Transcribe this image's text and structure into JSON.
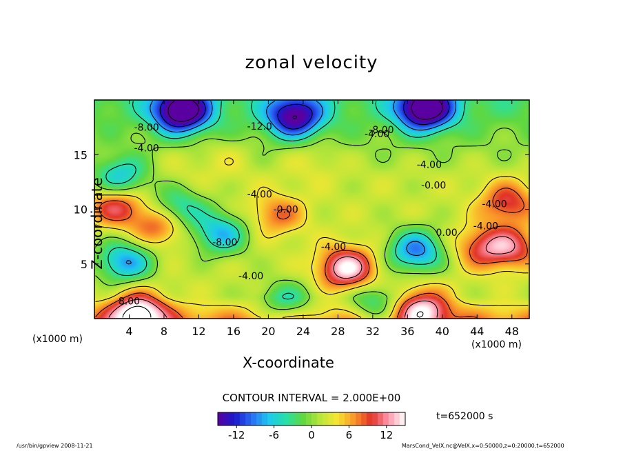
{
  "chart_data": {
    "type": "heatmap",
    "title": "zonal velocity",
    "xlabel": "X-coordinate",
    "ylabel": "Z-coordinate",
    "x_unit_left": "(x1000 m)",
    "x_unit_right": "(x1000 m)",
    "xlim": [
      0,
      50
    ],
    "ylim": [
      0,
      20
    ],
    "x_ticks": [
      "4",
      "8",
      "12",
      "16",
      "20",
      "24",
      "28",
      "32",
      "36",
      "40",
      "44",
      "48"
    ],
    "y_ticks": [
      "5",
      "10",
      "15"
    ],
    "colorbar": {
      "range": [
        -15,
        15
      ],
      "ticks": [
        "-12",
        "-6",
        "0",
        "6",
        "12"
      ],
      "colormap": [
        "#5b00a0",
        "#1a1acd",
        "#2a6ef5",
        "#1ec8f0",
        "#25e0a8",
        "#60d840",
        "#b8e63a",
        "#f5e632",
        "#fa9628",
        "#e13228",
        "#ff96aa",
        "#ffffff"
      ]
    },
    "contour_labels": [
      {
        "text": "-8.00",
        "x": 6.0,
        "z": 17.5
      },
      {
        "text": "-4.00",
        "x": 6.0,
        "z": 15.6
      },
      {
        "text": "-12.0",
        "x": 19.0,
        "z": 17.6
      },
      {
        "text": "-8.00",
        "x": 33.0,
        "z": 17.3
      },
      {
        "text": "-4.00",
        "x": 32.5,
        "z": 16.9
      },
      {
        "text": "-4.00",
        "x": 38.5,
        "z": 14.1
      },
      {
        "text": "-4.00",
        "x": 19.0,
        "z": 11.4
      },
      {
        "text": "-0.00",
        "x": 22.0,
        "z": 10.0
      },
      {
        "text": "-0.00",
        "x": 39.0,
        "z": 12.2
      },
      {
        "text": "-8.00",
        "x": 15.0,
        "z": 7.0
      },
      {
        "text": "-4.00",
        "x": 27.5,
        "z": 6.6
      },
      {
        "text": "0.00",
        "x": 40.5,
        "z": 7.9
      },
      {
        "text": "-4.00",
        "x": 45.0,
        "z": 8.5
      },
      {
        "text": "-4.00",
        "x": 46.0,
        "z": 10.5
      },
      {
        "text": "-4.00",
        "x": 18.0,
        "z": 3.9
      },
      {
        "text": "8.00",
        "x": 4.0,
        "z": 1.6
      }
    ],
    "features": [
      {
        "x": 2.5,
        "z": 10.4,
        "value": 10
      },
      {
        "x": 7.5,
        "z": 8.6,
        "value": 9
      },
      {
        "x": 3.0,
        "z": 12.8,
        "value": -8
      },
      {
        "x": 9.5,
        "z": 10.0,
        "value": -7
      },
      {
        "x": 3.5,
        "z": 5.2,
        "value": -9
      },
      {
        "x": 14.5,
        "z": 7.8,
        "value": -8
      },
      {
        "x": 21.0,
        "z": 9.5,
        "value": 7
      },
      {
        "x": 29.0,
        "z": 4.6,
        "value": 14
      },
      {
        "x": 37.0,
        "z": 6.2,
        "value": -10
      },
      {
        "x": 44.5,
        "z": 6.5,
        "value": 8
      },
      {
        "x": 48.0,
        "z": 6.5,
        "value": 9
      },
      {
        "x": 37.5,
        "z": 1.0,
        "value": 12
      },
      {
        "x": 32.5,
        "z": 1.2,
        "value": -6
      },
      {
        "x": 22.0,
        "z": 1.5,
        "value": -5
      },
      {
        "x": 5.0,
        "z": 0.6,
        "value": 14
      },
      {
        "x": 47.5,
        "z": 10.6,
        "value": 9
      },
      {
        "x": 10.0,
        "z": 14.3,
        "value": 2
      },
      {
        "x": 15.0,
        "z": 14.8,
        "value": 3
      },
      {
        "x": 25.0,
        "z": 14.7,
        "value": 3
      },
      {
        "x": 10.0,
        "z": 19.0,
        "value": -18
      },
      {
        "x": 23.0,
        "z": 18.5,
        "value": -14
      },
      {
        "x": 38.0,
        "z": 19.2,
        "value": -18
      }
    ]
  },
  "contour_interval": "CONTOUR INTERVAL = 2.000E+00",
  "time_label": "t=652000 s",
  "footer_left": "/usr/bin/gpview  2008-11-21",
  "footer_right": "MarsCond_VelX.nc@VelX,x=0:50000,z=0:20000,t=652000"
}
